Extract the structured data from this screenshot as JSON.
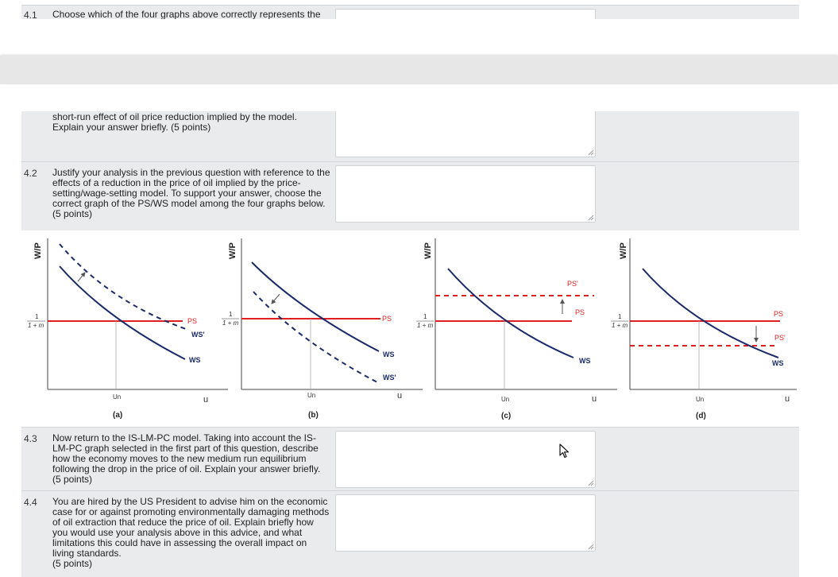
{
  "questions": {
    "q41": {
      "number": "4.1",
      "text_top": "Choose which of the four graphs above correctly represents the",
      "text_bottom": "short-run effect of oil price reduction implied by the model. Explain your answer briefly. (5 points)"
    },
    "q42": {
      "number": "4.2",
      "text": "Justify your analysis in the previous question with reference to the effects of a reduction in the price of oil implied by the price-setting/wage-setting model. To support your answer, choose the correct graph of the PS/WS model among the four graphs below.",
      "points": "(5 points)"
    },
    "q43": {
      "number": "4.3",
      "text": "Now return to the IS-LM-PC model. Taking into account the IS-LM-PC graph selected in the first part of this question, describe how the economy moves to the new medium run equilibrium following the drop in the price of oil. Explain your answer briefly.",
      "points": "(5 points)"
    },
    "q44": {
      "number": "4.4",
      "text": "You are hired by the US President to advise him on the economic case for or against promoting environmentally damaging methods of oil extraction that reduce the price of oil. Explain briefly how you would use your analysis above in this advice, and what limitations this could have in assessing the overall impact on living standards.",
      "points": "(5 points)"
    }
  },
  "graphs": {
    "y_label": "W/P",
    "x_label": "u",
    "un_label": "Un",
    "frac_num": "1",
    "frac_den": "1 + m",
    "a": {
      "caption": "(a)",
      "ps": "PS",
      "ws": "WS",
      "ws_new": "WS'"
    },
    "b": {
      "caption": "(b)",
      "ps": "PS",
      "ws": "WS",
      "ws_new": "WS'"
    },
    "c": {
      "caption": "(c)",
      "ps": "PS",
      "ps_new": "PS'",
      "ws": "WS"
    },
    "d": {
      "caption": "(d)",
      "ps": "PS",
      "ps_new": "PS'",
      "ws": "WS"
    }
  }
}
